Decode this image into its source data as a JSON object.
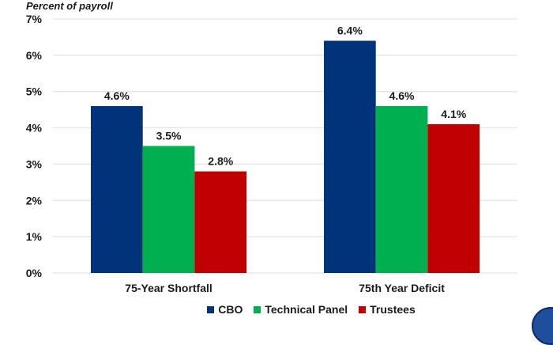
{
  "chart_data": {
    "type": "bar",
    "title": "",
    "ylabel": "Percent of payroll",
    "xlabel": "",
    "ylim": [
      0,
      7
    ],
    "yticks": [
      "0%",
      "1%",
      "2%",
      "3%",
      "4%",
      "5%",
      "6%",
      "7%"
    ],
    "grid": true,
    "legend_position": "bottom",
    "categories": [
      "75-Year Shortfall",
      "75th Year Deficit"
    ],
    "series": [
      {
        "name": "CBO",
        "color": "#00337a",
        "values": [
          4.6,
          6.4
        ],
        "labels": [
          "4.6%",
          "6.4%"
        ]
      },
      {
        "name": "Technical Panel",
        "color": "#00b050",
        "values": [
          3.5,
          4.6
        ],
        "labels": [
          "3.5%",
          "4.6%"
        ]
      },
      {
        "name": "Trustees",
        "color": "#c00000",
        "values": [
          2.8,
          4.1
        ],
        "labels": [
          "2.8%",
          "4.1%"
        ]
      }
    ]
  }
}
